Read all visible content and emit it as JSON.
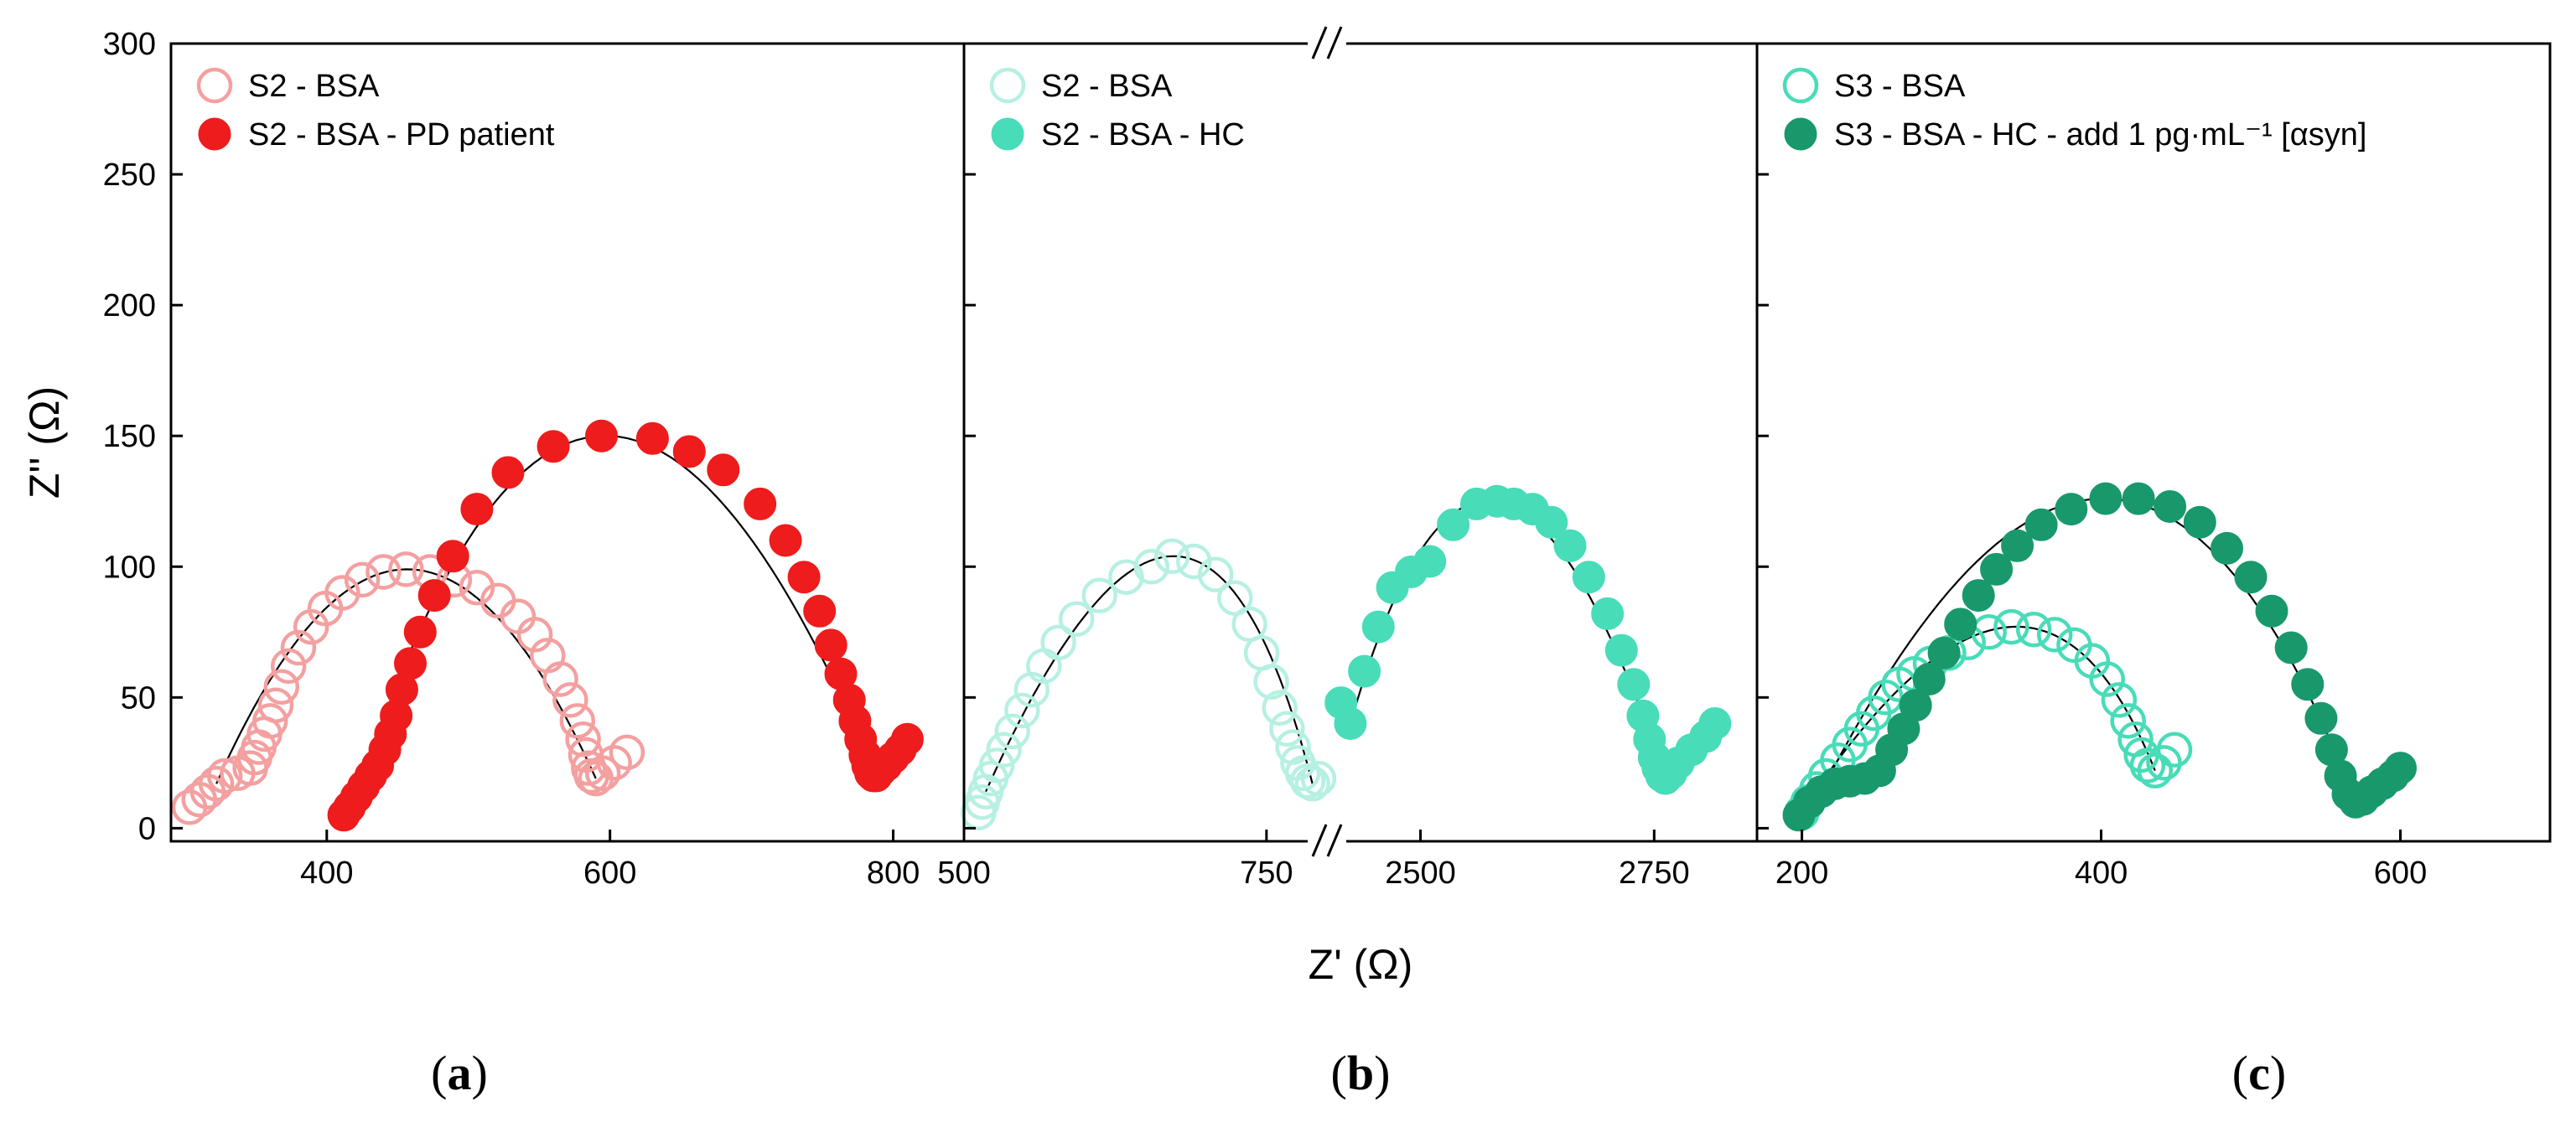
{
  "figure": {
    "y_axis_label": "Z'' (Ω)",
    "x_axis_label": "Z' (Ω)",
    "panel_labels": [
      {
        "open": "(",
        "letter": "a",
        "close": ")"
      },
      {
        "open": "(",
        "letter": "b",
        "close": ")"
      },
      {
        "open": "(",
        "letter": "c",
        "close": ")"
      }
    ]
  },
  "chart_data": [
    {
      "panel": "a",
      "type": "scatter",
      "xlabel": "Z' (Ω)",
      "ylabel": "Z'' (Ω)",
      "xlim": [
        290,
        850
      ],
      "ylim": [
        -5,
        300
      ],
      "xticks": [
        400,
        600,
        800
      ],
      "yticks": [
        0,
        50,
        100,
        150,
        200,
        250,
        300
      ],
      "series": [
        {
          "name": "S2 - BSA",
          "marker": "open-circle",
          "color": "#f4a0a0",
          "x": [
            303,
            310,
            316,
            322,
            328,
            337,
            346,
            349,
            352,
            356,
            360,
            364,
            368,
            373,
            380,
            389,
            399,
            411,
            425,
            440,
            456,
            473,
            490,
            506,
            521,
            535,
            547,
            556,
            565,
            572,
            577,
            581,
            583,
            585,
            587,
            590,
            595,
            603,
            612
          ],
          "y": [
            8,
            11,
            14,
            17,
            20,
            21,
            23,
            27,
            31,
            36,
            41,
            47,
            54,
            62,
            69,
            77,
            84,
            90,
            95,
            98,
            99,
            98,
            95,
            92,
            87,
            81,
            74,
            66,
            57,
            49,
            41,
            34,
            28,
            23,
            20,
            19,
            21,
            25,
            29
          ]
        },
        {
          "name": "S2 - BSA - PD patient",
          "marker": "filled-circle",
          "color": "#ee1c1c",
          "x": [
            412,
            416,
            421,
            426,
            431,
            436,
            441,
            445,
            449,
            453,
            459,
            466,
            476,
            489,
            506,
            528,
            560,
            594,
            630,
            656,
            680,
            706,
            724,
            737,
            748,
            756,
            763,
            769,
            773,
            777,
            780,
            782,
            784,
            786,
            788,
            791,
            795,
            800,
            805,
            810
          ],
          "y": [
            5,
            8,
            12,
            16,
            20,
            24,
            30,
            36,
            43,
            53,
            63,
            75,
            89,
            104,
            122,
            136,
            146,
            150,
            149,
            144,
            137,
            124,
            110,
            96,
            83,
            70,
            59,
            49,
            41,
            34,
            28,
            24,
            21,
            20,
            20,
            22,
            24,
            27,
            30,
            34
          ]
        }
      ],
      "legend_location": "top-left"
    },
    {
      "panel": "b",
      "type": "scatter",
      "xlabel": "Z' (Ω)",
      "ylabel": "Z'' (Ω)",
      "broken_axis": true,
      "x_segments": [
        [
          500,
          800
        ],
        [
          2400,
          2860
        ]
      ],
      "ylim": [
        -5,
        300
      ],
      "xticks_left": [
        500,
        750
      ],
      "xticks_right": [
        2500,
        2750
      ],
      "series": [
        {
          "name": "S2 - BSA",
          "marker": "open-circle",
          "color": "#b6f0e2",
          "x": [
            512,
            515,
            518,
            522,
            527,
            533,
            540,
            548,
            556,
            566,
            578,
            593,
            612,
            634,
            655,
            672,
            690,
            708,
            724,
            736,
            746,
            754,
            761,
            767,
            772,
            776,
            780,
            784,
            788,
            793
          ],
          "y": [
            6,
            10,
            14,
            19,
            24,
            30,
            37,
            45,
            53,
            62,
            71,
            80,
            89,
            96,
            100,
            104,
            102,
            97,
            88,
            78,
            67,
            56,
            46,
            38,
            31,
            25,
            21,
            18,
            17,
            19
          ]
        },
        {
          "name": "S2 - BSA - HC",
          "marker": "filled-circle",
          "color": "#48dcb8",
          "x": [
            2415,
            2425,
            2440,
            2455,
            2470,
            2490,
            2510,
            2535,
            2560,
            2582,
            2600,
            2620,
            2640,
            2660,
            2680,
            2700,
            2715,
            2728,
            2738,
            2745,
            2750,
            2754,
            2758,
            2762,
            2768,
            2776,
            2790,
            2805,
            2815
          ],
          "y": [
            48,
            40,
            60,
            77,
            92,
            98,
            102,
            116,
            124,
            125,
            124,
            122,
            117,
            108,
            96,
            82,
            68,
            55,
            43,
            34,
            27,
            23,
            20,
            19,
            21,
            25,
            30,
            35,
            40
          ]
        }
      ],
      "legend_location": "top-left"
    },
    {
      "panel": "c",
      "type": "scatter",
      "xlabel": "Z' (Ω)",
      "ylabel": "Z'' (Ω)",
      "xlim": [
        170,
        700
      ],
      "ylim": [
        -5,
        300
      ],
      "xticks": [
        200,
        400,
        600
      ],
      "yticks": [
        0,
        50,
        100,
        150,
        200,
        250,
        300
      ],
      "series": [
        {
          "name": "S3 - BSA",
          "marker": "open-circle",
          "color": "#48dcb8",
          "x": [
            200,
            204,
            210,
            216,
            224,
            232,
            240,
            248,
            256,
            265,
            275,
            286,
            298,
            311,
            325,
            340,
            355,
            369,
            382,
            394,
            404,
            412,
            418,
            423,
            427,
            431,
            436,
            442,
            449
          ],
          "y": [
            6,
            10,
            15,
            20,
            26,
            32,
            38,
            44,
            50,
            55,
            59,
            63,
            67,
            71,
            75,
            77,
            76,
            74,
            70,
            64,
            57,
            49,
            41,
            34,
            28,
            24,
            22,
            25,
            30
          ]
        },
        {
          "name": "S3 - BSA - HC - add 1 pg·mL⁻¹ [αsyn]",
          "marker": "filled-circle",
          "color": "#19986c",
          "x": [
            198,
            205,
            213,
            222,
            232,
            242,
            252,
            260,
            268,
            276,
            285,
            295,
            306,
            318,
            330,
            344,
            360,
            380,
            403,
            425,
            446,
            466,
            484,
            500,
            514,
            527,
            538,
            547,
            554,
            560,
            565,
            570,
            575,
            581,
            588,
            595,
            600
          ],
          "y": [
            5,
            10,
            14,
            17,
            18,
            19,
            22,
            30,
            38,
            47,
            57,
            67,
            78,
            89,
            99,
            108,
            116,
            122,
            126,
            126,
            123,
            117,
            107,
            96,
            83,
            69,
            55,
            42,
            30,
            20,
            13,
            10,
            11,
            14,
            17,
            20,
            23
          ]
        }
      ],
      "legend_location": "top-left"
    }
  ]
}
